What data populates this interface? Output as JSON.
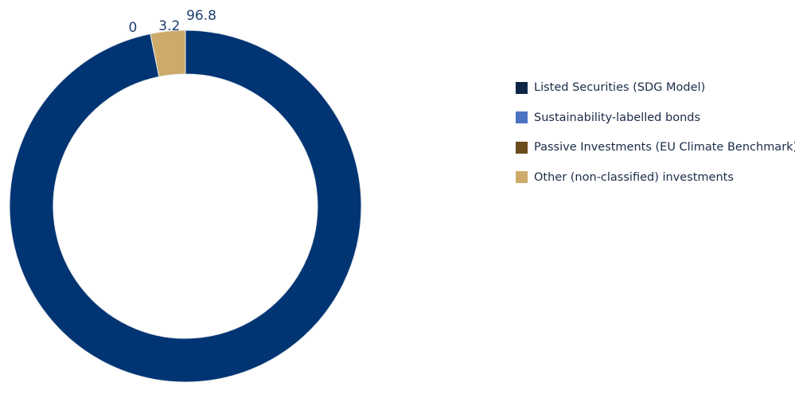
{
  "chart_data": {
    "type": "pie",
    "style": "donut",
    "title": "",
    "categories": [
      "Listed Securities (SDG Model)",
      "Sustainability-labelled bonds",
      "Passive Investments (EU Climate Benchmark)",
      "Other (non-classified) investments"
    ],
    "values": [
      96.8,
      0,
      0,
      3.2
    ],
    "data_labels": [
      "96.8",
      "",
      "0",
      "3.2"
    ],
    "colors": [
      "#003473",
      "#4b74c3",
      "#6b4a1e",
      "#cdaa6a"
    ],
    "legend_colors": [
      "#0d2545",
      "#4b74c3",
      "#6b4a1e",
      "#cdaa6a"
    ],
    "legend_position": "right"
  }
}
